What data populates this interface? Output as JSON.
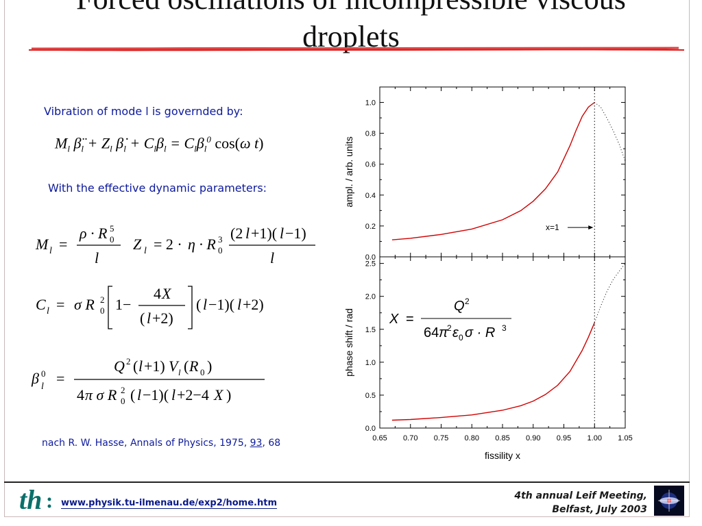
{
  "slide": {
    "title_line1": "Forced oscillations of incompressible viscous",
    "title_line2": "droplets",
    "intro": "Vibration of mode l is governded by:",
    "params_text": "With the effective dynamic parameters:",
    "reference_prefix": "nach R. W. Hasse, Annals of Physics, 1975, ",
    "reference_volume": "93",
    "reference_suffix": ", 68"
  },
  "footer": {
    "logo_text": "th",
    "url": "www.physik.tu-ilmenau.de/exp2/home.htm",
    "meeting_line1": "4th annual Leif Meeting,",
    "meeting_line2": "Belfast, July 2003"
  },
  "colors": {
    "accent_red": "#d92020",
    "text_blue": "#0d1a9c",
    "curve_red": "#d00000"
  },
  "chart_data": [
    {
      "type": "line",
      "xlabel": "fissility x",
      "ylabel": "ampl. / arb. units",
      "xlim": [
        0.65,
        1.05
      ],
      "ylim": [
        0.0,
        1.1
      ],
      "yticks": [
        "0.0",
        "0.2",
        "0.4",
        "0.6",
        "0.8",
        "1.0"
      ],
      "annotation": "x=1",
      "series": [
        {
          "style": "solid",
          "x": [
            0.67,
            0.7,
            0.75,
            0.8,
            0.85,
            0.88,
            0.9,
            0.92,
            0.94,
            0.96,
            0.97,
            0.98,
            0.99,
            1.0
          ],
          "y": [
            0.11,
            0.12,
            0.145,
            0.18,
            0.24,
            0.3,
            0.36,
            0.44,
            0.55,
            0.72,
            0.82,
            0.91,
            0.97,
            1.0
          ]
        },
        {
          "style": "dotted",
          "x": [
            1.0,
            1.01,
            1.02,
            1.03,
            1.04,
            1.05
          ],
          "y": [
            1.0,
            0.97,
            0.9,
            0.82,
            0.73,
            0.62
          ]
        }
      ]
    },
    {
      "type": "line",
      "xlabel": "fissility x",
      "ylabel": "phase shift / rad",
      "xlim": [
        0.65,
        1.05
      ],
      "ylim": [
        0.0,
        2.6
      ],
      "yticks": [
        "0.0",
        "0.5",
        "1.0",
        "1.5",
        "2.0",
        "2.5"
      ],
      "xticks": [
        "0.65",
        "0.70",
        "0.75",
        "0.80",
        "0.85",
        "0.90",
        "0.95",
        "1.00",
        "1.05"
      ],
      "series": [
        {
          "style": "solid",
          "x": [
            0.67,
            0.7,
            0.75,
            0.8,
            0.85,
            0.88,
            0.9,
            0.92,
            0.94,
            0.96,
            0.97,
            0.98,
            0.99,
            1.0
          ],
          "y": [
            0.12,
            0.13,
            0.16,
            0.2,
            0.27,
            0.34,
            0.41,
            0.51,
            0.65,
            0.86,
            1.02,
            1.18,
            1.38,
            1.6
          ]
        },
        {
          "style": "dotted",
          "x": [
            1.0,
            1.01,
            1.02,
            1.03,
            1.04,
            1.05
          ],
          "y": [
            1.6,
            1.85,
            2.07,
            2.25,
            2.38,
            2.5
          ]
        }
      ]
    }
  ]
}
